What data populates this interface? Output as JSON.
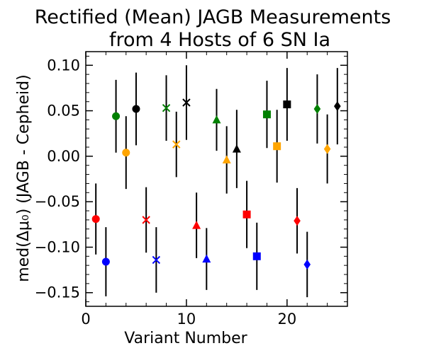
{
  "chart_data": {
    "type": "scatter",
    "title_line1": "Rectified (Mean) JAGB Measurements",
    "title_line2": "from 4 Hosts of 6 SN Ia",
    "xlabel": "Variant Number",
    "ylabel": "med(Δμ₀) (JAGB - Cepheid)",
    "xlim": [
      0,
      26
    ],
    "ylim": [
      -0.165,
      0.115
    ],
    "xticks": [
      0,
      10,
      20
    ],
    "xtick_labels": [
      "0",
      "10",
      "20"
    ],
    "yticks": [
      0.1,
      0.05,
      0.0,
      -0.05,
      -0.1,
      -0.15
    ],
    "ytick_labels": [
      "0.10",
      "0.05",
      "0.00",
      "−0.05",
      "−0.10",
      "−0.15"
    ],
    "grid": false,
    "colors": {
      "red": "#ff0000",
      "blue": "#0000ff",
      "green": "#008000",
      "orange": "#ffa500",
      "black": "#000000"
    },
    "points": [
      {
        "x": 1,
        "y": -0.069,
        "err": 0.039,
        "marker": "circle",
        "color": "red"
      },
      {
        "x": 2,
        "y": -0.116,
        "err": 0.038,
        "marker": "circle",
        "color": "blue"
      },
      {
        "x": 3,
        "y": 0.044,
        "err": 0.04,
        "marker": "circle",
        "color": "green"
      },
      {
        "x": 4,
        "y": 0.004,
        "err": 0.04,
        "marker": "circle",
        "color": "orange"
      },
      {
        "x": 5,
        "y": 0.052,
        "err": 0.04,
        "marker": "circle",
        "color": "black"
      },
      {
        "x": 6,
        "y": -0.07,
        "err": 0.036,
        "marker": "x",
        "color": "red"
      },
      {
        "x": 7,
        "y": -0.114,
        "err": 0.036,
        "marker": "x",
        "color": "blue"
      },
      {
        "x": 8,
        "y": 0.053,
        "err": 0.036,
        "marker": "x",
        "color": "green"
      },
      {
        "x": 9,
        "y": 0.013,
        "err": 0.036,
        "marker": "x",
        "color": "orange"
      },
      {
        "x": 10,
        "y": 0.059,
        "err": 0.041,
        "marker": "x",
        "color": "black"
      },
      {
        "x": 11,
        "y": -0.076,
        "err": 0.036,
        "marker": "triangle",
        "color": "red"
      },
      {
        "x": 12,
        "y": -0.113,
        "err": 0.034,
        "marker": "triangle",
        "color": "blue"
      },
      {
        "x": 13,
        "y": 0.04,
        "err": 0.034,
        "marker": "triangle",
        "color": "green"
      },
      {
        "x": 14,
        "y": -0.004,
        "err": 0.037,
        "marker": "triangle",
        "color": "orange"
      },
      {
        "x": 15,
        "y": 0.008,
        "err": 0.043,
        "marker": "triangle",
        "color": "black"
      },
      {
        "x": 16,
        "y": -0.064,
        "err": 0.037,
        "marker": "square",
        "color": "red"
      },
      {
        "x": 17,
        "y": -0.11,
        "err": 0.037,
        "marker": "square",
        "color": "blue"
      },
      {
        "x": 18,
        "y": 0.046,
        "err": 0.037,
        "marker": "square",
        "color": "green"
      },
      {
        "x": 19,
        "y": 0.011,
        "err": 0.04,
        "marker": "square",
        "color": "orange"
      },
      {
        "x": 20,
        "y": 0.057,
        "err": 0.04,
        "marker": "square",
        "color": "black"
      },
      {
        "x": 21,
        "y": -0.071,
        "err": 0.036,
        "marker": "diamond",
        "color": "red"
      },
      {
        "x": 22,
        "y": -0.119,
        "err": 0.036,
        "marker": "diamond",
        "color": "blue"
      },
      {
        "x": 23,
        "y": 0.052,
        "err": 0.038,
        "marker": "diamond",
        "color": "green"
      },
      {
        "x": 24,
        "y": 0.008,
        "err": 0.038,
        "marker": "diamond",
        "color": "orange"
      },
      {
        "x": 25,
        "y": 0.055,
        "err": 0.042,
        "marker": "diamond",
        "color": "black"
      }
    ]
  }
}
